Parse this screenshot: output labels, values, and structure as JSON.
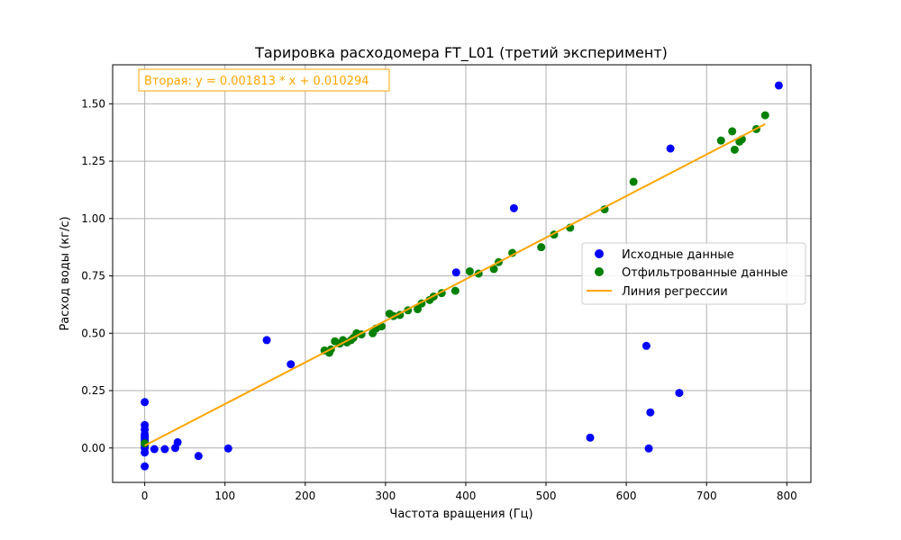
{
  "chart_data": {
    "type": "scatter",
    "title": "Тарировка расходомера FT_L01 (третий эксперимент)",
    "xlabel": "Частота вращения (Гц)",
    "ylabel": "Расход воды (кг/с)",
    "xlim": [
      -40,
      830
    ],
    "ylim": [
      -0.15,
      1.67
    ],
    "xticks": [
      0,
      100,
      200,
      300,
      400,
      500,
      600,
      700,
      800
    ],
    "yticks": [
      0.0,
      0.25,
      0.5,
      0.75,
      1.0,
      1.25,
      1.5
    ],
    "xtick_labels": [
      "0",
      "100",
      "200",
      "300",
      "400",
      "500",
      "600",
      "700",
      "800"
    ],
    "ytick_labels": [
      "0.00",
      "0.25",
      "0.50",
      "0.75",
      "1.00",
      "1.25",
      "1.50"
    ],
    "grid": true,
    "legend_position": "center-right",
    "annotation": "Вторая: y = 0.001813 * x + 0.010294",
    "annotation_color": "#ffa500",
    "series": [
      {
        "name": "Исходные данные",
        "kind": "scatter",
        "color": "#0000ff",
        "points": [
          [
            0,
            -0.08
          ],
          [
            0,
            -0.02
          ],
          [
            0,
            0.0
          ],
          [
            0,
            0.01
          ],
          [
            0,
            0.02
          ],
          [
            0,
            0.03
          ],
          [
            0,
            0.04
          ],
          [
            0,
            0.05
          ],
          [
            0,
            0.06
          ],
          [
            0,
            0.08
          ],
          [
            0,
            0.1
          ],
          [
            0,
            0.2
          ],
          [
            12,
            -0.005
          ],
          [
            25,
            -0.005
          ],
          [
            38,
            0.0
          ],
          [
            41,
            0.025
          ],
          [
            67,
            -0.035
          ],
          [
            104,
            -0.002
          ],
          [
            152,
            0.47
          ],
          [
            182,
            0.365
          ],
          [
            388,
            0.765
          ],
          [
            460,
            1.045
          ],
          [
            555,
            0.045
          ],
          [
            625,
            0.445
          ],
          [
            628,
            -0.002
          ],
          [
            630,
            0.155
          ],
          [
            655,
            1.305
          ],
          [
            666,
            0.24
          ],
          [
            790,
            1.58
          ]
        ]
      },
      {
        "name": "Отфильтрованные данные",
        "kind": "scatter",
        "color": "#008000",
        "points": [
          [
            0,
            0.02
          ],
          [
            224,
            0.425
          ],
          [
            230,
            0.415
          ],
          [
            232,
            0.43
          ],
          [
            237,
            0.465
          ],
          [
            243,
            0.455
          ],
          [
            247,
            0.47
          ],
          [
            252,
            0.46
          ],
          [
            257,
            0.47
          ],
          [
            260,
            0.48
          ],
          [
            264,
            0.5
          ],
          [
            270,
            0.495
          ],
          [
            284,
            0.5
          ],
          [
            288,
            0.52
          ],
          [
            295,
            0.53
          ],
          [
            305,
            0.585
          ],
          [
            310,
            0.575
          ],
          [
            318,
            0.58
          ],
          [
            328,
            0.6
          ],
          [
            340,
            0.605
          ],
          [
            345,
            0.63
          ],
          [
            355,
            0.645
          ],
          [
            360,
            0.66
          ],
          [
            370,
            0.675
          ],
          [
            387,
            0.685
          ],
          [
            405,
            0.77
          ],
          [
            416,
            0.76
          ],
          [
            435,
            0.78
          ],
          [
            441,
            0.81
          ],
          [
            458,
            0.85
          ],
          [
            494,
            0.875
          ],
          [
            510,
            0.93
          ],
          [
            530,
            0.96
          ],
          [
            573,
            1.04
          ],
          [
            609,
            1.16
          ],
          [
            718,
            1.34
          ],
          [
            732,
            1.38
          ],
          [
            735,
            1.3
          ],
          [
            741,
            1.335
          ],
          [
            744,
            1.345
          ],
          [
            762,
            1.39
          ],
          [
            773,
            1.45
          ]
        ]
      },
      {
        "name": "Линия регрессии",
        "kind": "line",
        "color": "#ffa500",
        "slope": 0.001813,
        "intercept": 0.010294,
        "x_range": [
          0,
          773
        ]
      }
    ]
  }
}
